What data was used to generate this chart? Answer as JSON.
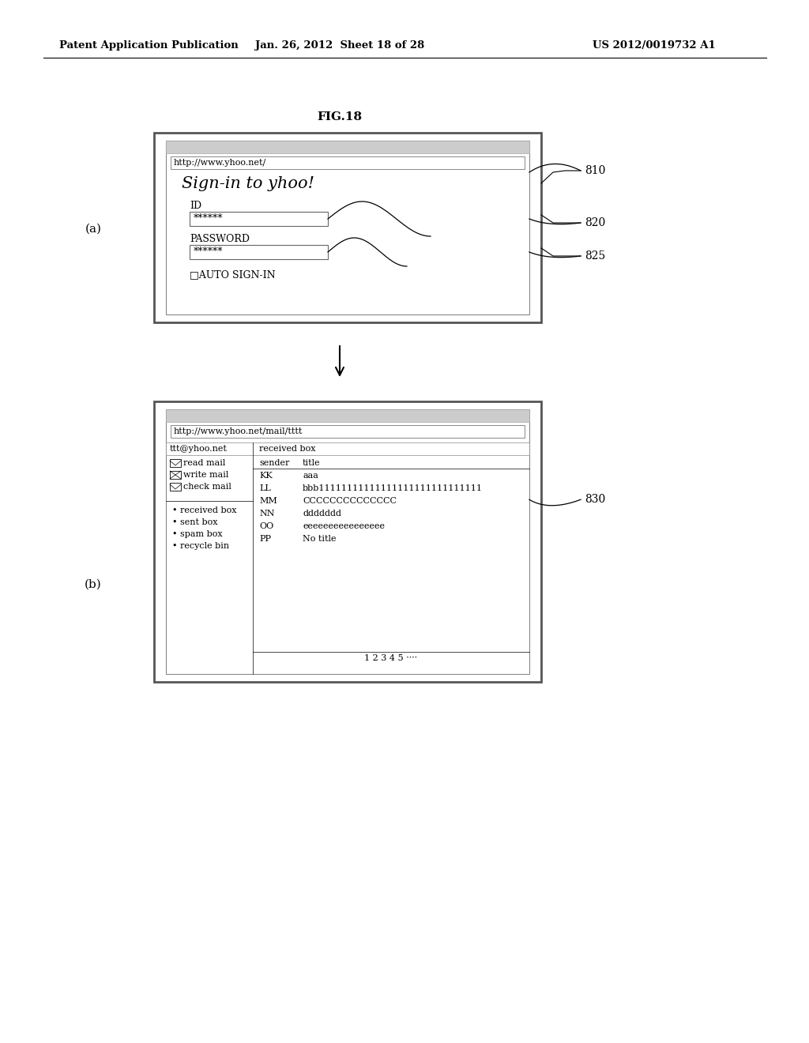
{
  "header_left": "Patent Application Publication",
  "header_mid": "Jan. 26, 2012  Sheet 18 of 28",
  "header_right": "US 2012/0019732 A1",
  "fig_label": "FIG.18",
  "label_a": "(a)",
  "label_b": "(b)",
  "bg_color": "#ffffff",
  "panel_a": {
    "url_bar": "http://www.yhoo.net/",
    "title_text": "Sign-in to yhoo!",
    "id_label": "ID",
    "id_field": "******",
    "pwd_label": "PASSWORD",
    "pwd_field": "******",
    "auto_signin": "□AUTO SIGN-IN",
    "ref_810": "810",
    "ref_820": "820",
    "ref_825": "825"
  },
  "panel_b": {
    "url_bar": "http://www.yhoo.net/mail/tttt",
    "nav_user": "ttt@yhoo.net",
    "nav_box": "received box",
    "col_sender": "sender",
    "col_title": "title",
    "rows": [
      [
        "KK",
        "aaa"
      ],
      [
        "LL",
        "bbb11111111111111111111111111111"
      ],
      [
        "MM",
        "CCCCCCCCCCCCCC"
      ],
      [
        "NN",
        "ddddddd"
      ],
      [
        "OO",
        "eeeeeeeeeeeeeeee"
      ],
      [
        "PP",
        "No title"
      ]
    ],
    "nav_items_top": [
      "read mail",
      "write mail",
      "check mail"
    ],
    "nav_items_bot": [
      "received box",
      "sent box",
      "spam box",
      "recycle bin"
    ],
    "pagination": "1 2 3 4 5 ····",
    "ref_830": "830"
  }
}
